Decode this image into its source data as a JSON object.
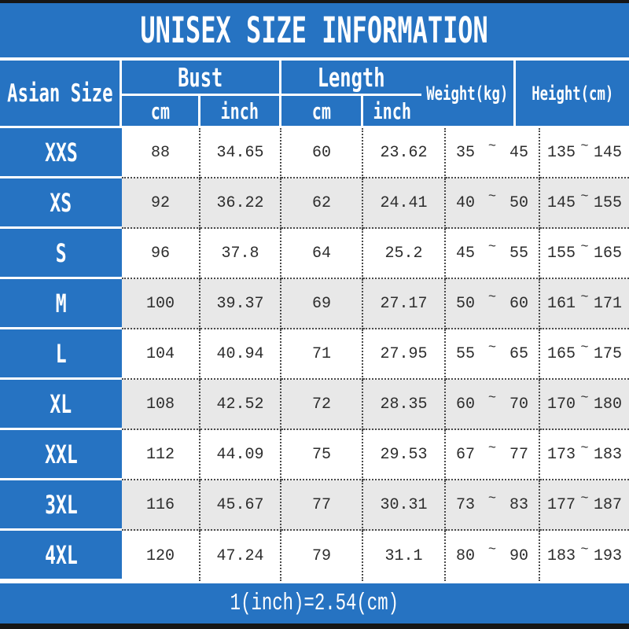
{
  "title": "UNISEX SIZE INFORMATION",
  "header": {
    "size_col": "Asian Size",
    "bust": "Bust",
    "length": "Length",
    "cm": "cm",
    "inch": "inch",
    "weight": "Weight(kg)",
    "height": "Height(cm)"
  },
  "symbols": {
    "tilde": "~"
  },
  "footer": {
    "note": "1(inch)=2.54(cm)"
  },
  "colors": {
    "blue": "#2673c2",
    "row_alt": "#e8e8e8",
    "border_bar": "#161616",
    "text_dark": "#2d2d2d",
    "header_text": "#ffffff"
  },
  "chart_data": {
    "type": "table",
    "title": "UNISEX SIZE INFORMATION",
    "columns": [
      "Asian Size",
      "Bust cm",
      "Bust inch",
      "Length cm",
      "Length inch",
      "Weight(kg)",
      "Height(cm)"
    ],
    "note": "1(inch)=2.54(cm)",
    "rows": [
      {
        "size": "XXS",
        "bust_cm": "88",
        "bust_inch": "34.65",
        "length_cm": "60",
        "length_inch": "23.62",
        "weight_min": "35",
        "weight_max": "45",
        "height_min": "135",
        "height_max": "145"
      },
      {
        "size": "XS",
        "bust_cm": "92",
        "bust_inch": "36.22",
        "length_cm": "62",
        "length_inch": "24.41",
        "weight_min": "40",
        "weight_max": "50",
        "height_min": "145",
        "height_max": "155"
      },
      {
        "size": "S",
        "bust_cm": "96",
        "bust_inch": "37.8",
        "length_cm": "64",
        "length_inch": "25.2",
        "weight_min": "45",
        "weight_max": "55",
        "height_min": "155",
        "height_max": "165"
      },
      {
        "size": "M",
        "bust_cm": "100",
        "bust_inch": "39.37",
        "length_cm": "69",
        "length_inch": "27.17",
        "weight_min": "50",
        "weight_max": "60",
        "height_min": "161",
        "height_max": "171"
      },
      {
        "size": "L",
        "bust_cm": "104",
        "bust_inch": "40.94",
        "length_cm": "71",
        "length_inch": "27.95",
        "weight_min": "55",
        "weight_max": "65",
        "height_min": "165",
        "height_max": "175"
      },
      {
        "size": "XL",
        "bust_cm": "108",
        "bust_inch": "42.52",
        "length_cm": "72",
        "length_inch": "28.35",
        "weight_min": "60",
        "weight_max": "70",
        "height_min": "170",
        "height_max": "180"
      },
      {
        "size": "XXL",
        "bust_cm": "112",
        "bust_inch": "44.09",
        "length_cm": "75",
        "length_inch": "29.53",
        "weight_min": "67",
        "weight_max": "77",
        "height_min": "173",
        "height_max": "183"
      },
      {
        "size": "3XL",
        "bust_cm": "116",
        "bust_inch": "45.67",
        "length_cm": "77",
        "length_inch": "30.31",
        "weight_min": "73",
        "weight_max": "83",
        "height_min": "177",
        "height_max": "187"
      },
      {
        "size": "4XL",
        "bust_cm": "120",
        "bust_inch": "47.24",
        "length_cm": "79",
        "length_inch": "31.1",
        "weight_min": "80",
        "weight_max": "90",
        "height_min": "183",
        "height_max": "193"
      }
    ]
  }
}
